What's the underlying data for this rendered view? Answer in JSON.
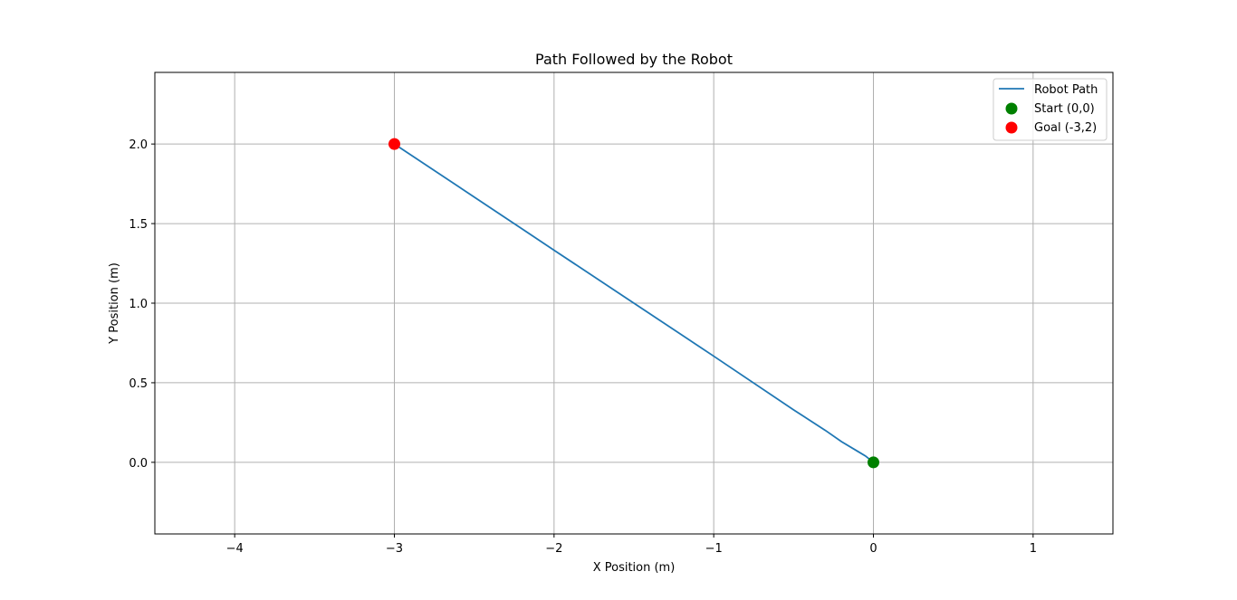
{
  "chart_data": {
    "type": "line",
    "title": "Path Followed by the Robot",
    "xlabel": "X Position (m)",
    "ylabel": "Y Position (m)",
    "xlim": [
      -4.5,
      1.5
    ],
    "ylim": [
      -0.45,
      2.45
    ],
    "xticks": [
      -4,
      -3,
      -2,
      -1,
      0,
      1
    ],
    "xtick_labels": [
      "−4",
      "−3",
      "−2",
      "−1",
      "0",
      "1"
    ],
    "yticks": [
      0.0,
      0.5,
      1.0,
      1.5,
      2.0
    ],
    "ytick_labels": [
      "0.0",
      "0.5",
      "1.0",
      "1.5",
      "2.0"
    ],
    "grid": true,
    "legend_position": "top-right",
    "series": [
      {
        "name": "Robot Path",
        "kind": "line",
        "color": "#1f77b4",
        "x": [
          0.0,
          -0.05,
          -0.1,
          -0.2,
          -0.3,
          -0.5,
          -1.0,
          -1.5,
          -2.0,
          -2.5,
          -3.0
        ],
        "y": [
          0.0,
          0.04,
          0.07,
          0.13,
          0.2,
          0.33,
          0.667,
          1.0,
          1.333,
          1.667,
          2.0
        ]
      },
      {
        "name": "Start (0,0)",
        "kind": "marker",
        "color": "#008000",
        "x": [
          0
        ],
        "y": [
          0
        ]
      },
      {
        "name": "Goal (-3,2)",
        "kind": "marker",
        "color": "#ff0000",
        "x": [
          -3
        ],
        "y": [
          2
        ]
      }
    ]
  }
}
